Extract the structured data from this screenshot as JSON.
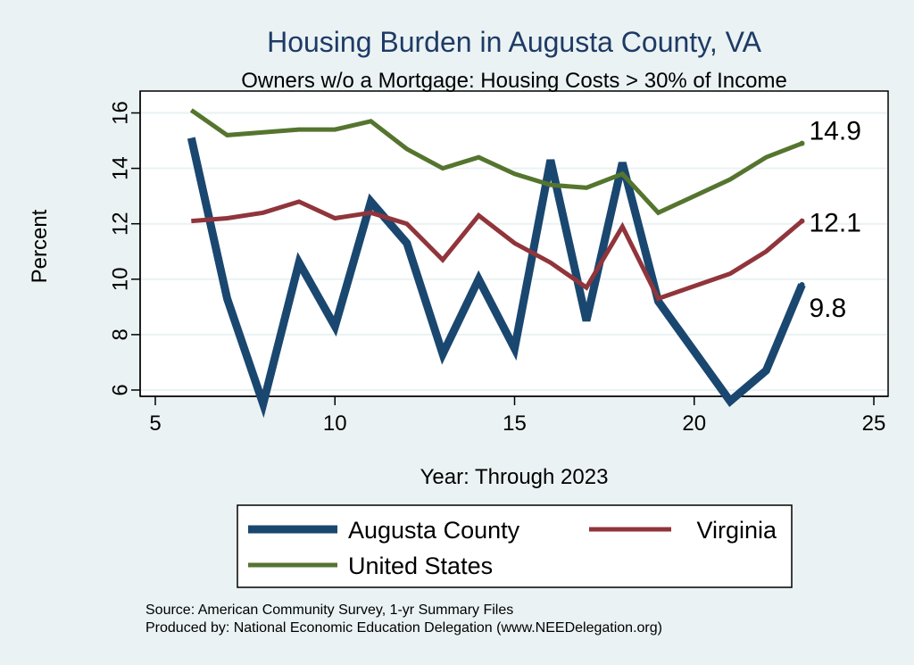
{
  "chart_data": {
    "type": "line",
    "title": "Housing Burden in Augusta County, VA",
    "subtitle": "Owners w/o a Mortgage: Housing Costs > 30% of Income",
    "xlabel": "Year: Through 2023",
    "ylabel": "Percent",
    "xlim": [
      5,
      25
    ],
    "ylim": [
      5,
      16.5
    ],
    "xticks": [
      5,
      10,
      15,
      20,
      25
    ],
    "yticks": [
      6,
      8,
      10,
      12,
      14,
      16
    ],
    "grid": "horizontal",
    "legend_position": "bottom",
    "series": [
      {
        "name": "Augusta County",
        "color": "#1a476f",
        "x": [
          6,
          7,
          8,
          9,
          10,
          11,
          12,
          13,
          14,
          15,
          16,
          17,
          18,
          19,
          21,
          22,
          23
        ],
        "y": [
          15.1,
          9.3,
          5.5,
          10.6,
          8.3,
          12.8,
          11.3,
          7.3,
          10.0,
          7.5,
          14.3,
          8.5,
          14.2,
          9.2,
          5.6,
          6.7,
          9.8
        ],
        "end_label": "9.8"
      },
      {
        "name": "Virginia",
        "color": "#90353b",
        "x": [
          6,
          7,
          8,
          9,
          10,
          11,
          12,
          13,
          14,
          15,
          16,
          17,
          18,
          19,
          21,
          22,
          23
        ],
        "y": [
          12.1,
          12.2,
          12.4,
          12.8,
          12.2,
          12.4,
          12.0,
          10.7,
          12.3,
          11.3,
          10.6,
          9.7,
          11.9,
          9.3,
          10.2,
          11.0,
          12.1
        ],
        "end_label": "12.1"
      },
      {
        "name": "United States",
        "color": "#55752f",
        "x": [
          6,
          7,
          8,
          9,
          10,
          11,
          12,
          13,
          14,
          15,
          16,
          17,
          18,
          19,
          21,
          22,
          23
        ],
        "y": [
          16.1,
          15.2,
          15.3,
          15.4,
          15.4,
          15.7,
          14.7,
          14.0,
          14.4,
          13.8,
          13.4,
          13.3,
          13.8,
          12.4,
          13.6,
          14.4,
          14.9
        ],
        "end_label": "14.9"
      }
    ],
    "source_lines": [
      "Source: American Community Survey, 1-yr Summary Files",
      "Produced by: National Economic Education Delegation (www.NEEDelegation.org)"
    ]
  }
}
